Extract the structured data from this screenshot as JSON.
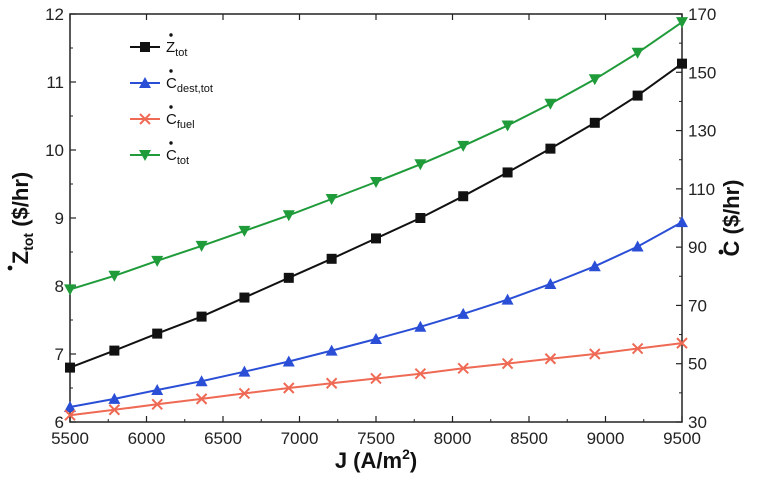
{
  "chart_data": {
    "type": "line",
    "x": [
      5500,
      5790,
      6070,
      6360,
      6640,
      6930,
      7210,
      7500,
      7790,
      8070,
      8360,
      8640,
      8930,
      9210,
      9500
    ],
    "xlim": [
      5500,
      9500
    ],
    "xticks": [
      "5500",
      "6000",
      "6500",
      "7000",
      "7500",
      "8000",
      "8500",
      "9000",
      "9500"
    ],
    "xtick_values": [
      5500,
      6000,
      6500,
      7000,
      7500,
      8000,
      8500,
      9000,
      9500
    ],
    "ylim_left": [
      6,
      12
    ],
    "yticks_left": [
      "6",
      "7",
      "8",
      "9",
      "10",
      "11",
      "12"
    ],
    "ytick_values_left": [
      6,
      7,
      8,
      9,
      10,
      11,
      12
    ],
    "ylim_right": [
      30,
      170
    ],
    "yticks_right": [
      "30",
      "50",
      "70",
      "90",
      "110",
      "130",
      "150",
      "170"
    ],
    "ytick_values_right": [
      30,
      50,
      70,
      90,
      110,
      130,
      150,
      170
    ],
    "xlabel": {
      "main": "J  (A/m",
      "sup": "2",
      "end": ")"
    },
    "ylabel_left": {
      "main": "Z",
      "sub": "tot",
      "end": " ($/hr)"
    },
    "ylabel_right": {
      "main": "C",
      "end": " ($/hr)"
    },
    "series": [
      {
        "name": "Z_tot",
        "legend": {
          "main": "Z",
          "sub": "tot"
        },
        "axis": "left",
        "color": "#111111",
        "marker": "square",
        "values": [
          6.8,
          7.05,
          7.3,
          7.55,
          7.83,
          8.12,
          8.4,
          8.7,
          9.0,
          9.32,
          9.67,
          10.02,
          10.4,
          10.8,
          11.27
        ]
      },
      {
        "name": "C_dest,tot",
        "legend": {
          "main": "C",
          "sub": "dest,tot"
        },
        "axis": "left",
        "color": "#2a4fd6",
        "marker": "triangle-up",
        "values": [
          6.22,
          6.34,
          6.47,
          6.6,
          6.74,
          6.89,
          7.05,
          7.22,
          7.4,
          7.59,
          7.8,
          8.03,
          8.29,
          8.58,
          8.94
        ]
      },
      {
        "name": "C_fuel",
        "legend": {
          "main": "C",
          "sub": "fuel"
        },
        "axis": "left",
        "color": "#ef6a55",
        "marker": "x",
        "values": [
          6.1,
          6.18,
          6.26,
          6.34,
          6.42,
          6.5,
          6.57,
          6.64,
          6.71,
          6.79,
          6.86,
          6.93,
          7.0,
          7.08,
          7.16
        ]
      },
      {
        "name": "C_tot",
        "legend": {
          "main": "C",
          "sub": "tot"
        },
        "axis": "left",
        "color": "#1f9b3a",
        "marker": "triangle-down",
        "values": [
          7.95,
          8.15,
          8.37,
          8.59,
          8.81,
          9.04,
          9.28,
          9.53,
          9.79,
          10.06,
          10.36,
          10.68,
          11.04,
          11.43,
          11.88
        ]
      }
    ],
    "legend_position": "top-left",
    "grid": false
  }
}
